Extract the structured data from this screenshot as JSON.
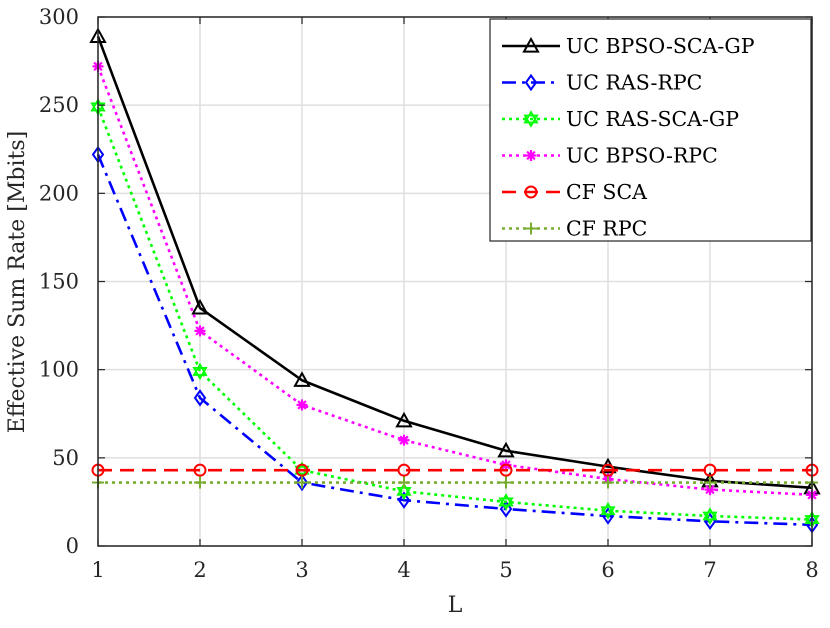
{
  "chart_data": {
    "type": "line",
    "title": "",
    "xlabel": "L",
    "ylabel": "Effective Sum Rate [Mbits]",
    "x": [
      1,
      2,
      3,
      4,
      5,
      6,
      7,
      8
    ],
    "xlim": [
      1,
      8
    ],
    "ylim": [
      0,
      300
    ],
    "xticks": [
      1,
      2,
      3,
      4,
      5,
      6,
      7,
      8
    ],
    "yticks": [
      0,
      50,
      100,
      150,
      200,
      250,
      300
    ],
    "grid": true,
    "legend_position": "top-right",
    "series": [
      {
        "name": "UC BPSO-SCA-GP",
        "values": [
          289,
          135,
          94,
          71,
          54,
          45,
          37,
          33
        ],
        "color": "#000000",
        "dash": "solid",
        "marker": "triangle"
      },
      {
        "name": "UC RAS-RPC",
        "values": [
          222,
          84,
          36,
          26,
          21,
          17,
          14,
          12
        ],
        "color": "#0000ff",
        "dash": "dashdot",
        "marker": "diamond"
      },
      {
        "name": "UC RAS-SCA-GP",
        "values": [
          249,
          99,
          43,
          31,
          25,
          20,
          17,
          15
        ],
        "color": "#00ff00",
        "dash": "dotted",
        "marker": "hexagram"
      },
      {
        "name": "UC BPSO-RPC",
        "values": [
          272,
          122,
          80,
          60,
          46,
          38,
          32,
          29
        ],
        "color": "#ff00ff",
        "dash": "dotted",
        "marker": "asterisk"
      },
      {
        "name": "CF SCA",
        "values": [
          43,
          43,
          43,
          43,
          43,
          43,
          43,
          43
        ],
        "color": "#ff0000",
        "dash": "dashed",
        "marker": "circle"
      },
      {
        "name": "CF RPC",
        "values": [
          36,
          36,
          36,
          36,
          36,
          36,
          36,
          36
        ],
        "color": "#77ac30",
        "dash": "dotted",
        "marker": "plus"
      }
    ]
  }
}
